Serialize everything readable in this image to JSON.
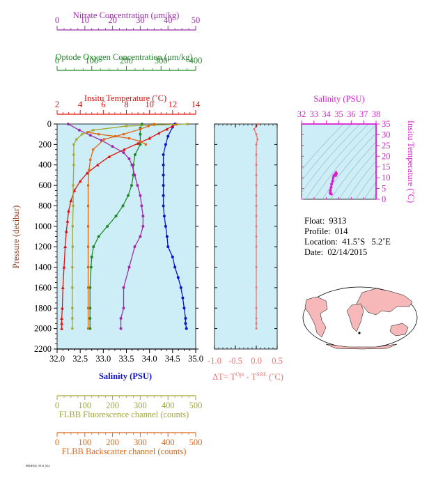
{
  "colors": {
    "panel_bg": "#cdeef7",
    "nitrate": "#9b2fa6",
    "oxygen": "#1e8a26",
    "temperature": "#e0100e",
    "salinity": "#1111cc",
    "fluorescence": "#a4a832",
    "backscatter": "#de6818",
    "delta_t": "#f07070",
    "ts_panel": "#d91fd2",
    "land": "#f6b8b8"
  },
  "labels": {
    "nitrate": "Nitrate Concentration (μm/kg)",
    "oxygen": "Optode Oxygen Concentration (μm/kg)",
    "temperature": "Insitu Temperature (˚C)",
    "salinity_bottom": "Salinity (PSU)",
    "salinity_ts": "Salinity (PSU)",
    "pressure": "Pressure (decibar)",
    "delta_t_main": "ΔT= T",
    "delta_t_sup1": "Opt",
    "delta_t_mid": " - T",
    "delta_t_sup2": "SBE",
    "delta_t_unit": " (˚C)",
    "fluorescence": "FLBB Fluorescence channel (counts)",
    "backscatter": "FLBB Backscatter channel (counts)",
    "ts_temperature": "Insitu Temperature (˚C)"
  },
  "info": {
    "float": "Float:  9313",
    "profile": "Profile:  014",
    "location": "Location:  41.5˚S   5.2˚E",
    "date": "Date:  02/14/2015"
  },
  "footer": "PROFILE_9313_014",
  "chart_data": [
    {
      "type": "line",
      "panel": "profiles",
      "ylabel": "Pressure (decibar)",
      "ylim": [
        2200,
        0
      ],
      "y_ticks": [
        0,
        200,
        400,
        600,
        800,
        1000,
        1200,
        1400,
        1600,
        1800,
        2000,
        2200
      ],
      "axes": {
        "salinity": {
          "lim": [
            32.0,
            35.0
          ],
          "ticks": [
            "32.0",
            "32.5",
            "33.0",
            "33.5",
            "34.0",
            "34.5",
            "35.0"
          ],
          "label": "Salinity (PSU)"
        },
        "temperature": {
          "lim": [
            2,
            14
          ],
          "ticks": [
            "2",
            "4",
            "6",
            "8",
            "10",
            "12",
            "14"
          ],
          "label": "Insitu Temperature (˚C)"
        },
        "oxygen": {
          "lim": [
            0,
            400
          ],
          "ticks": [
            "0",
            "100",
            "200",
            "300",
            "400"
          ],
          "label": "Optode Oxygen Concentration (μm/kg)"
        },
        "nitrate": {
          "lim": [
            0,
            50
          ],
          "ticks": [
            "0",
            "10",
            "20",
            "30",
            "40",
            "50"
          ],
          "label": "Nitrate Concentration (μm/kg)"
        },
        "fluorescence": {
          "lim": [
            0,
            500
          ],
          "ticks": [
            "0",
            "100",
            "200",
            "300",
            "400",
            "500"
          ],
          "label": "FLBB Fluorescence channel (counts)"
        },
        "backscatter": {
          "lim": [
            0,
            500
          ],
          "ticks": [
            "0",
            "100",
            "200",
            "300",
            "400",
            "500"
          ],
          "label": "FLBB Backscatter channel (counts)"
        }
      },
      "series": [
        {
          "axis": "salinity",
          "color": "#1111cc",
          "x": [
            34.55,
            34.5,
            34.4,
            34.35,
            34.3,
            34.3,
            34.3,
            34.3,
            34.3,
            34.3,
            34.32,
            34.35,
            34.38,
            34.4,
            34.5,
            34.55,
            34.62,
            34.68,
            34.72,
            34.75,
            34.78,
            34.78,
            34.8
          ],
          "y": [
            0,
            30,
            120,
            200,
            300,
            400,
            500,
            600,
            700,
            800,
            900,
            1000,
            1100,
            1200,
            1300,
            1400,
            1500,
            1600,
            1700,
            1800,
            1900,
            1950,
            2000
          ]
        },
        {
          "axis": "temperature",
          "color": "#e0100e",
          "x": [
            12.3,
            12.0,
            11.5,
            10.8,
            10.0,
            9.0,
            7.8,
            6.5,
            5.5,
            4.6,
            4.0,
            3.5,
            3.2,
            3.0,
            2.9,
            2.8,
            2.7,
            2.6,
            2.5,
            2.45,
            2.4,
            2.4,
            2.4
          ],
          "y": [
            0,
            20,
            50,
            90,
            140,
            190,
            250,
            320,
            400,
            480,
            560,
            650,
            750,
            850,
            950,
            1050,
            1200,
            1400,
            1600,
            1800,
            1900,
            1950,
            2000
          ]
        },
        {
          "axis": "oxygen",
          "color": "#1e8a26",
          "x": [
            245,
            240,
            240,
            240,
            225,
            220,
            220,
            215,
            205,
            190,
            170,
            145,
            120,
            105,
            100,
            98,
            95,
            95,
            95,
            95
          ],
          "y": [
            0,
            40,
            100,
            200,
            300,
            400,
            500,
            600,
            700,
            800,
            900,
            1000,
            1100,
            1200,
            1300,
            1400,
            1600,
            1800,
            1900,
            2000
          ]
        },
        {
          "axis": "nitrate",
          "color": "#9b2fa6",
          "x": [
            4,
            8,
            12,
            16,
            20,
            24,
            26,
            27,
            28,
            29,
            30,
            30.5,
            31,
            31,
            30,
            28,
            26,
            24,
            24,
            23,
            23
          ],
          "y": [
            0,
            60,
            110,
            160,
            220,
            280,
            340,
            400,
            500,
            600,
            700,
            800,
            900,
            1000,
            1100,
            1200,
            1400,
            1600,
            1800,
            1900,
            2000
          ]
        },
        {
          "axis": "fluorescence",
          "color": "#a4a832",
          "x": [
            470,
            350,
            250,
            130,
            90,
            70,
            60,
            60,
            60,
            58,
            58,
            56,
            56,
            55,
            55,
            55,
            55,
            55
          ],
          "y": [
            0,
            10,
            20,
            60,
            100,
            150,
            200,
            300,
            400,
            600,
            800,
            1000,
            1200,
            1400,
            1600,
            1800,
            1900,
            2000
          ]
        },
        {
          "axis": "backscatter",
          "color": "#de6818",
          "x": [
            350,
            330,
            300,
            240,
            170,
            130,
            120,
            115,
            112,
            112,
            112,
            112,
            112,
            112,
            112,
            112
          ],
          "y": [
            0,
            20,
            50,
            100,
            150,
            250,
            350,
            450,
            600,
            800,
            1000,
            1200,
            1400,
            1600,
            1800,
            2000
          ]
        },
        {
          "axis": "backscatter",
          "color": "#de6818",
          "x": [
            110,
            150,
            210,
            260,
            300,
            320
          ],
          "y": [
            80,
            100,
            120,
            140,
            170,
            200
          ]
        }
      ]
    },
    {
      "type": "line",
      "panel": "delta_t",
      "xlim": [
        -1.0,
        0.5
      ],
      "x_ticks": [
        "-1.0",
        "-0.5",
        "0.0",
        "0.5"
      ],
      "series": [
        {
          "color": "#f07070",
          "x": [
            0.05,
            0.0,
            -0.05,
            0.0,
            0.03,
            0.0,
            0.0,
            0.0,
            0.0,
            0.0,
            0.0,
            0.0,
            0.0,
            0.0,
            0.0,
            0.0,
            0.0,
            0.0,
            0.0,
            0.0,
            0.0,
            0.0
          ],
          "y": [
            0,
            20,
            50,
            100,
            150,
            200,
            300,
            400,
            500,
            600,
            700,
            800,
            900,
            1000,
            1100,
            1200,
            1400,
            1600,
            1800,
            1900,
            1950,
            2000
          ]
        }
      ]
    },
    {
      "type": "scatter",
      "panel": "ts_diagram",
      "xlim": [
        32,
        38
      ],
      "ylim": [
        0,
        35
      ],
      "x_ticks": [
        "32",
        "33",
        "34",
        "35",
        "36",
        "37",
        "38"
      ],
      "y_ticks": [
        "0",
        "5",
        "10",
        "15",
        "20",
        "25",
        "30",
        "35"
      ],
      "series": [
        {
          "color": "#d91fd2",
          "x": [
            34.4,
            34.35,
            34.3,
            34.32,
            34.38,
            34.42,
            34.5,
            34.55,
            34.6,
            34.7,
            34.75,
            34.78,
            34.8,
            34.75
          ],
          "y": [
            2.4,
            2.6,
            3.0,
            4.0,
            5.5,
            7.0,
            8.5,
            10.0,
            11.0,
            11.5,
            12.0,
            12.3,
            11.8,
            11.0
          ]
        }
      ]
    }
  ]
}
